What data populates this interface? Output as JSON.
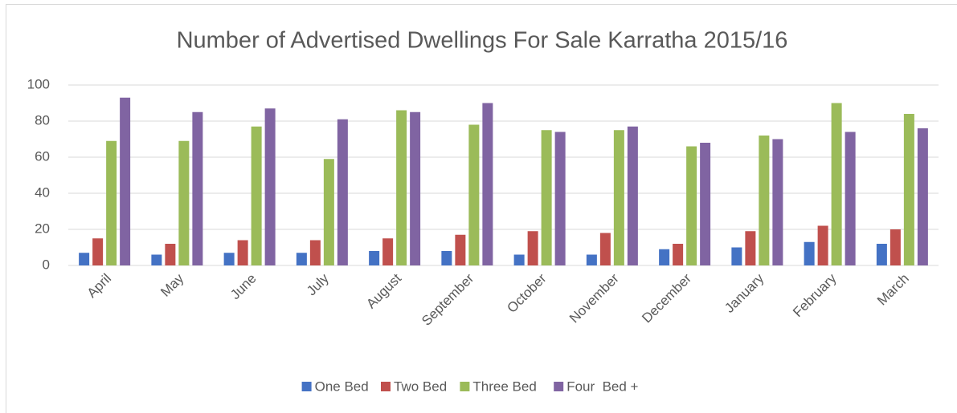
{
  "chart_data": {
    "type": "bar",
    "title": "Number of Advertised Dwellings For Sale Karratha 2015/16",
    "categories": [
      "April",
      "May",
      "June",
      "July",
      "August",
      "September",
      "October",
      "November",
      "December",
      "January",
      "February",
      "March"
    ],
    "series": [
      {
        "name": "One Bed",
        "color": "#4472c4",
        "values": [
          7,
          6,
          7,
          7,
          8,
          8,
          6,
          6,
          9,
          10,
          13,
          12
        ]
      },
      {
        "name": "Two Bed",
        "color": "#c0504d",
        "values": [
          15,
          12,
          14,
          14,
          15,
          17,
          19,
          18,
          12,
          19,
          22,
          20
        ]
      },
      {
        "name": "Three Bed",
        "color": "#9bbb59",
        "values": [
          69,
          69,
          77,
          59,
          86,
          78,
          75,
          75,
          66,
          72,
          90,
          84
        ]
      },
      {
        "name": "Four  Bed +",
        "color": "#8064a2",
        "values": [
          93,
          85,
          87,
          81,
          85,
          90,
          74,
          77,
          68,
          70,
          74,
          76
        ]
      }
    ],
    "ylim": [
      0,
      100
    ],
    "yticks": [
      0,
      20,
      40,
      60,
      80,
      100
    ],
    "grid": true,
    "legend": "bottom"
  }
}
